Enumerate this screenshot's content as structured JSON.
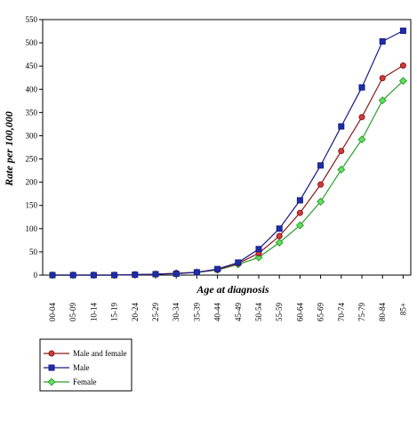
{
  "chart_data": {
    "type": "line",
    "xlabel": "Age at diagnosis",
    "ylabel": "Rate per 100,000",
    "ylim": [
      0,
      550
    ],
    "yticks": [
      0,
      50,
      100,
      150,
      200,
      250,
      300,
      350,
      400,
      450,
      500,
      550
    ],
    "grid": false,
    "legend_position": "bottom-left",
    "categories": [
      "00-04",
      "05-09",
      "10-14",
      "15-19",
      "20-24",
      "25-29",
      "30-34",
      "35-39",
      "40-44",
      "45-49",
      "50-54",
      "55-59",
      "60-64",
      "65-69",
      "70-74",
      "75-79",
      "80-84",
      "85+"
    ],
    "series": [
      {
        "name": "Male and female",
        "color": "#8b1a1a",
        "marker_fill": "#d23b3b",
        "marker": "circle",
        "values": [
          0,
          0,
          0,
          0,
          1,
          2,
          4,
          6,
          12,
          25,
          47,
          84,
          134,
          195,
          267,
          340,
          424,
          451
        ]
      },
      {
        "name": "Male",
        "color": "#1a1a8b",
        "marker_fill": "#1c2fa8",
        "marker": "square",
        "values": [
          0,
          0,
          0,
          0,
          1,
          2,
          3,
          6,
          13,
          27,
          56,
          100,
          161,
          236,
          320,
          404,
          503,
          526
        ]
      },
      {
        "name": "Female",
        "color": "#2e9e2e",
        "marker_fill": "#62e062",
        "marker": "diamond",
        "values": [
          0,
          0,
          0,
          0,
          1,
          2,
          4,
          6,
          11,
          23,
          38,
          70,
          107,
          158,
          227,
          292,
          376,
          418
        ]
      }
    ]
  }
}
